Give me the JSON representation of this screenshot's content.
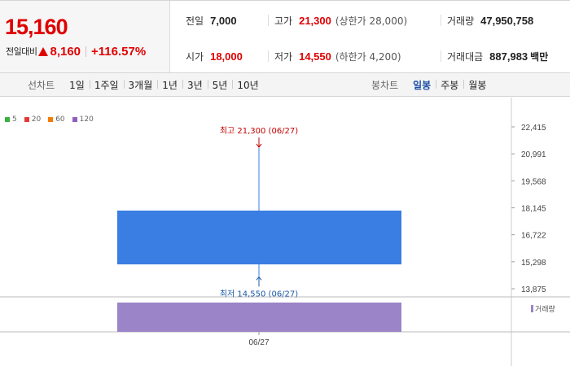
{
  "summary": {
    "current_price": "15,160",
    "change_label": "전일대비",
    "change_value": "8,160",
    "change_percent": "+116.57%",
    "prev_close_label": "전일",
    "prev_close": "7,000",
    "open_label": "시가",
    "open": "18,000",
    "high_label": "고가",
    "high": "21,300",
    "upper_limit": "(상한가 28,000)",
    "low_label": "저가",
    "low": "14,550",
    "lower_limit": "(하한가 4,200)",
    "volume_label": "거래량",
    "volume": "47,950,758",
    "amount_label": "거래대금",
    "amount": "887,983",
    "amount_unit": "백만"
  },
  "line_tabs": {
    "title": "선차트",
    "items": [
      "1일",
      "1주일",
      "3개월",
      "1년",
      "3년",
      "5년",
      "10년"
    ]
  },
  "candle_tabs": {
    "title": "봉차트",
    "items": [
      "일봉",
      "주봉",
      "월봉"
    ],
    "active": "일봉"
  },
  "legend": [
    {
      "label": "5",
      "color": "#3cb043"
    },
    {
      "label": "20",
      "color": "#e53935"
    },
    {
      "label": "60",
      "color": "#f57c00"
    },
    {
      "label": "120",
      "color": "#8e5fc2"
    }
  ],
  "colors": {
    "up": "#e00000",
    "candle": "#3a7de3",
    "volume": "#9b84c7",
    "high_note": "#c00000",
    "low_note": "#1c5aa8"
  },
  "chart_data": {
    "type": "candlestick",
    "date": "06/27",
    "open": 18000,
    "high": 21300,
    "low": 14550,
    "close": 15160,
    "volume": 47950758,
    "y_ticks": [
      "22,415",
      "20,991",
      "19,568",
      "18,145",
      "16,722",
      "15,298",
      "13,875"
    ],
    "ylim": [
      13875,
      22415
    ],
    "high_label": "최고 21,300 (06/27)",
    "low_label": "최저 14,550 (06/27)",
    "volume_legend": "거래량",
    "x_tick": "06/27"
  }
}
